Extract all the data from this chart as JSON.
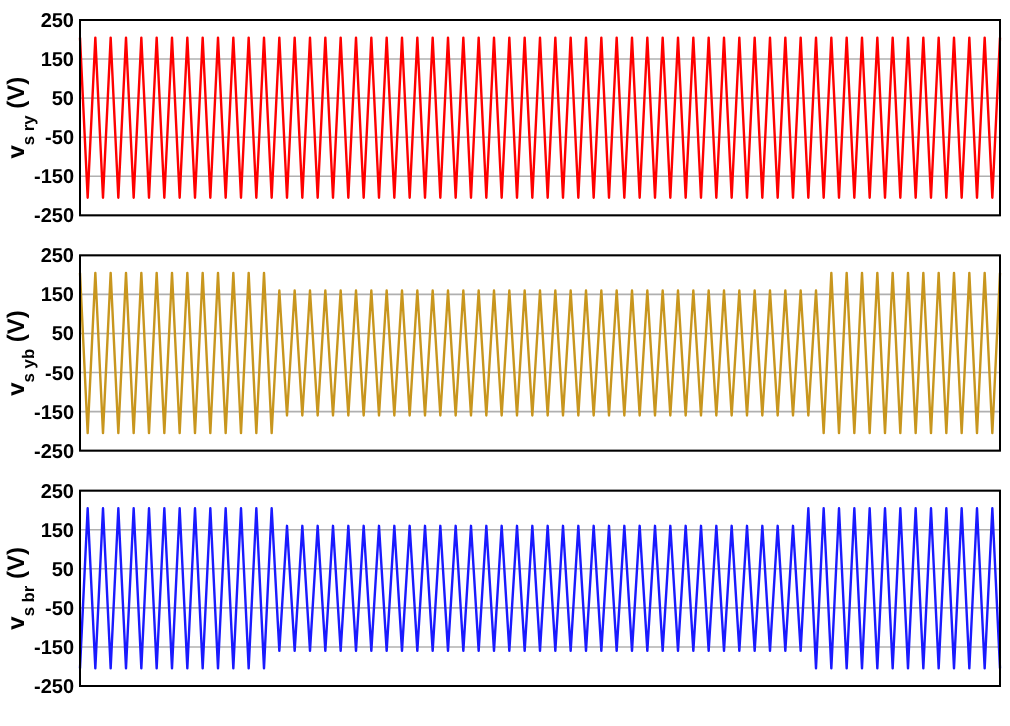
{
  "chart_data": [
    {
      "type": "line",
      "ylabel": "v$_{s ry}$ (V)",
      "grid": "y",
      "ylim": [
        -250,
        250
      ],
      "yticks": [
        -250,
        -150,
        -50,
        50,
        150,
        250
      ],
      "categories": [
        null,
        null,
        null,
        null,
        null,
        null,
        null,
        null,
        null,
        null,
        null,
        null,
        null,
        null,
        null,
        null,
        null,
        null,
        null,
        null,
        null,
        null,
        null,
        null,
        null,
        null,
        null,
        null,
        null,
        null,
        null,
        null,
        null,
        null,
        null,
        null,
        null,
        null,
        null,
        null,
        null,
        null,
        null,
        null,
        null,
        null,
        null,
        null,
        null,
        null,
        null,
        null,
        null,
        null,
        null,
        null,
        null,
        null,
        null,
        null,
        null,
        null,
        null,
        null,
        null,
        null,
        null,
        null,
        null,
        null,
        null,
        null,
        null,
        null,
        null,
        null,
        null,
        null,
        null,
        null,
        null,
        null,
        null,
        null,
        null,
        null,
        null,
        null,
        null,
        null,
        null,
        null,
        null,
        null,
        null,
        null,
        null,
        null,
        null,
        null,
        null,
        null,
        null,
        null,
        null,
        null,
        null,
        null,
        null,
        null,
        null,
        null,
        null,
        null,
        null,
        null,
        null,
        null,
        null,
        null,
        null
      ],
      "series": [
        {
          "color": "#ff0000",
          "values": [
            205,
            -205,
            205,
            -205,
            205,
            -205,
            205,
            -205,
            205,
            -205,
            205,
            -205,
            205,
            -205,
            205,
            -205,
            205,
            -205,
            205,
            -205,
            205,
            -205,
            205,
            -205,
            205,
            -205,
            205,
            -205,
            205,
            -205,
            205,
            -205,
            205,
            -205,
            205,
            -205,
            205,
            -205,
            205,
            -205,
            205,
            -205,
            205,
            -205,
            205,
            -205,
            205,
            -205,
            205,
            -205,
            205,
            -205,
            205,
            -205,
            205,
            -205,
            205,
            -205,
            205,
            -205,
            205,
            -205,
            205,
            -205,
            205,
            -205,
            205,
            -205,
            205,
            -205,
            205,
            -205,
            205,
            -205,
            205,
            -205,
            205,
            -205,
            205,
            -205,
            205,
            -205,
            205,
            -205,
            205,
            -205,
            205,
            -205,
            205,
            -205,
            205,
            -205,
            205,
            -205,
            205,
            -205,
            205,
            -205,
            205,
            -205,
            205,
            -205,
            205,
            -205,
            205,
            -205,
            205,
            -205,
            205,
            -205,
            205,
            -205,
            205,
            -205,
            205,
            -205,
            205,
            -205,
            205,
            -205,
            205
          ]
        }
      ]
    },
    {
      "type": "line",
      "ylabel": "v$_{s yb}$ (V)",
      "grid": "y",
      "ylim": [
        -250,
        250
      ],
      "yticks": [
        -250,
        -150,
        -50,
        50,
        150,
        250
      ],
      "categories": [
        null,
        null,
        null,
        null,
        null,
        null,
        null,
        null,
        null,
        null,
        null,
        null,
        null,
        null,
        null,
        null,
        null,
        null,
        null,
        null,
        null,
        null,
        null,
        null,
        null,
        null,
        null,
        null,
        null,
        null,
        null,
        null,
        null,
        null,
        null,
        null,
        null,
        null,
        null,
        null,
        null,
        null,
        null,
        null,
        null,
        null,
        null,
        null,
        null,
        null,
        null,
        null,
        null,
        null,
        null,
        null,
        null,
        null,
        null,
        null,
        null,
        null,
        null,
        null,
        null,
        null,
        null,
        null,
        null,
        null,
        null,
        null,
        null,
        null,
        null,
        null,
        null,
        null,
        null,
        null,
        null,
        null,
        null,
        null,
        null,
        null,
        null,
        null,
        null,
        null,
        null,
        null,
        null,
        null,
        null,
        null,
        null,
        null,
        null,
        null,
        null,
        null,
        null,
        null,
        null,
        null,
        null,
        null,
        null,
        null,
        null,
        null,
        null,
        null,
        null,
        null,
        null,
        null,
        null,
        null,
        null
      ],
      "series": [
        {
          "color": "#c8961e",
          "values": [
            205,
            -205,
            205,
            -205,
            205,
            -205,
            205,
            -205,
            205,
            -205,
            205,
            -205,
            205,
            -205,
            205,
            -205,
            205,
            -205,
            205,
            -205,
            205,
            -205,
            205,
            -205,
            205,
            -205,
            160,
            -160,
            160,
            -160,
            160,
            -160,
            160,
            -160,
            160,
            -160,
            160,
            -160,
            160,
            -160,
            160,
            -160,
            160,
            -160,
            160,
            -160,
            160,
            -160,
            160,
            -160,
            160,
            -160,
            160,
            -160,
            160,
            -160,
            160,
            -160,
            160,
            -160,
            160,
            -160,
            160,
            -160,
            160,
            -160,
            160,
            -160,
            160,
            -160,
            160,
            -160,
            160,
            -160,
            160,
            -160,
            160,
            -160,
            160,
            -160,
            160,
            -160,
            160,
            -160,
            160,
            -160,
            160,
            -160,
            160,
            -160,
            160,
            -160,
            160,
            -160,
            160,
            -160,
            160,
            -205,
            205,
            -205,
            205,
            -205,
            205,
            -205,
            205,
            -205,
            205,
            -205,
            205,
            -205,
            205,
            -205,
            205,
            -205,
            205,
            -205,
            205,
            -205,
            205,
            -205,
            205
          ]
        }
      ]
    },
    {
      "type": "line",
      "ylabel": "v$_{s br}$ (V)",
      "grid": "y",
      "ylim": [
        -250,
        250
      ],
      "yticks": [
        -250,
        -150,
        -50,
        50,
        150,
        250
      ],
      "categories": [
        null,
        null,
        null,
        null,
        null,
        null,
        null,
        null,
        null,
        null,
        null,
        null,
        null,
        null,
        null,
        null,
        null,
        null,
        null,
        null,
        null,
        null,
        null,
        null,
        null,
        null,
        null,
        null,
        null,
        null,
        null,
        null,
        null,
        null,
        null,
        null,
        null,
        null,
        null,
        null,
        null,
        null,
        null,
        null,
        null,
        null,
        null,
        null,
        null,
        null,
        null,
        null,
        null,
        null,
        null,
        null,
        null,
        null,
        null,
        null,
        null,
        null,
        null,
        null,
        null,
        null,
        null,
        null,
        null,
        null,
        null,
        null,
        null,
        null,
        null,
        null,
        null,
        null,
        null,
        null,
        null,
        null,
        null,
        null,
        null,
        null,
        null,
        null,
        null,
        null,
        null,
        null,
        null,
        null,
        null,
        null,
        null,
        null,
        null,
        null,
        null,
        null,
        null,
        null,
        null,
        null,
        null,
        null,
        null,
        null,
        null,
        null,
        null,
        null,
        null,
        null,
        null,
        null,
        null,
        null,
        null
      ],
      "series": [
        {
          "color": "#1a1aff",
          "values": [
            -205,
            205,
            -205,
            205,
            -205,
            205,
            -205,
            205,
            -205,
            205,
            -205,
            205,
            -205,
            205,
            -205,
            205,
            -205,
            205,
            -205,
            205,
            -205,
            205,
            -205,
            205,
            -205,
            205,
            -160,
            160,
            -160,
            160,
            -160,
            160,
            -160,
            160,
            -160,
            160,
            -160,
            160,
            -160,
            160,
            -160,
            160,
            -160,
            160,
            -160,
            160,
            -160,
            160,
            -160,
            160,
            -160,
            160,
            -160,
            160,
            -160,
            160,
            -160,
            160,
            -160,
            160,
            -160,
            160,
            -160,
            160,
            -160,
            160,
            -160,
            160,
            -160,
            160,
            -160,
            160,
            -160,
            160,
            -160,
            160,
            -160,
            160,
            -160,
            160,
            -160,
            160,
            -160,
            160,
            -160,
            160,
            -160,
            160,
            -160,
            160,
            -160,
            160,
            -160,
            160,
            -160,
            205,
            -205,
            205,
            -205,
            205,
            -205,
            205,
            -205,
            205,
            -205,
            205,
            -205,
            205,
            -205,
            205,
            -205,
            205,
            -205,
            205,
            -205,
            205,
            -205,
            205,
            -205,
            205,
            -205
          ]
        }
      ]
    }
  ]
}
